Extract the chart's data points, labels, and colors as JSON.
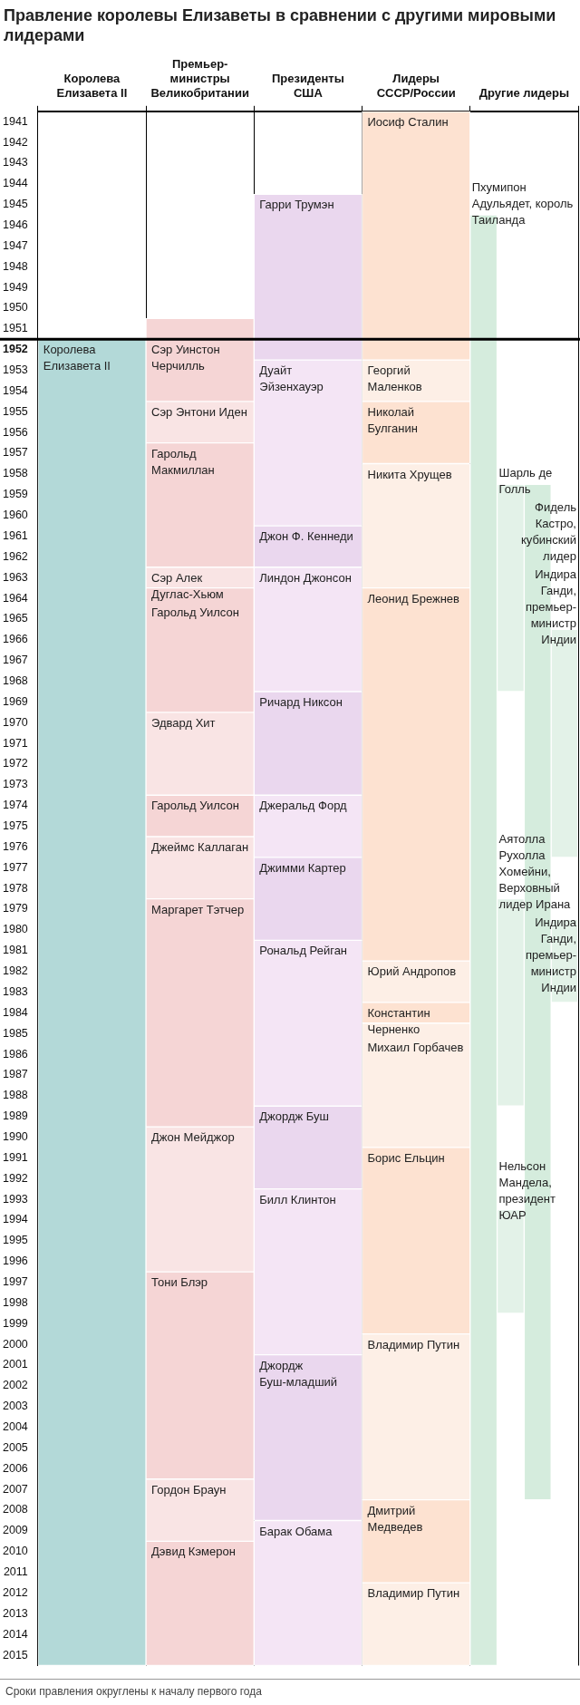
{
  "chart_data": {
    "type": "bar",
    "title": "Правление королевы Елизаветы в сравнении с другими мировыми лидерами",
    "categories": [
      "Королева Елизавета II",
      "Премьер-министры Великобритании",
      "Президенты США",
      "Лидеры СССР/России",
      "Другие лидеры"
    ],
    "ylim": [
      2016,
      1941
    ],
    "yticks": [
      {
        "value": 1941.5,
        "label": "1941"
      },
      {
        "value": 1942.5,
        "label": "1942"
      },
      {
        "value": 1943.5,
        "label": "1943"
      },
      {
        "value": 1944.5,
        "label": "1944"
      },
      {
        "value": 1945.5,
        "label": "1945"
      },
      {
        "value": 1946.5,
        "label": "1946"
      },
      {
        "value": 1947.5,
        "label": "1947"
      },
      {
        "value": 1948.5,
        "label": "1948"
      },
      {
        "value": 1949.5,
        "label": "1949"
      },
      {
        "value": 1950.5,
        "label": "1950"
      },
      {
        "value": 1951.5,
        "label": "1951"
      },
      {
        "value": 1952.5,
        "label": "1952"
      },
      {
        "value": 1953.5,
        "label": "1953"
      },
      {
        "value": 1954.5,
        "label": "1954"
      },
      {
        "value": 1955.5,
        "label": "1955"
      },
      {
        "value": 1956.5,
        "label": "1956"
      },
      {
        "value": 1957.5,
        "label": "1957"
      },
      {
        "value": 1958.5,
        "label": "1958"
      },
      {
        "value": 1959.5,
        "label": "1959"
      },
      {
        "value": 1960.5,
        "label": "1960"
      },
      {
        "value": 1961.5,
        "label": "1961"
      },
      {
        "value": 1962.5,
        "label": "1962"
      },
      {
        "value": 1963.5,
        "label": "1963"
      },
      {
        "value": 1964.5,
        "label": "1964"
      },
      {
        "value": 1965.5,
        "label": "1965"
      },
      {
        "value": 1966.5,
        "label": "1966"
      },
      {
        "value": 1967.5,
        "label": "1967"
      },
      {
        "value": 1968.5,
        "label": "1968"
      },
      {
        "value": 1969.5,
        "label": "1969"
      },
      {
        "value": 1970.5,
        "label": "1970"
      },
      {
        "value": 1971.5,
        "label": "1971"
      },
      {
        "value": 1972.5,
        "label": "1972"
      },
      {
        "value": 1973.5,
        "label": "1973"
      },
      {
        "value": 1974.5,
        "label": "1974"
      },
      {
        "value": 1975.5,
        "label": "1975"
      },
      {
        "value": 1976.5,
        "label": "1976"
      },
      {
        "value": 1977.5,
        "label": "1977"
      },
      {
        "value": 1978.5,
        "label": "1978"
      },
      {
        "value": 1979.5,
        "label": "1979"
      },
      {
        "value": 1980.5,
        "label": "1980"
      },
      {
        "value": 1981.5,
        "label": "1981"
      },
      {
        "value": 1982.5,
        "label": "1982"
      },
      {
        "value": 1983.5,
        "label": "1983"
      },
      {
        "value": 1984.5,
        "label": "1984"
      },
      {
        "value": 1985.5,
        "label": "1985"
      },
      {
        "value": 1986.5,
        "label": "1986"
      },
      {
        "value": 1987.5,
        "label": "1987"
      },
      {
        "value": 1988.5,
        "label": "1988"
      },
      {
        "value": 1989.5,
        "label": "1989"
      },
      {
        "value": 1990.5,
        "label": "1990"
      },
      {
        "value": 1991.5,
        "label": "1991"
      },
      {
        "value": 1992.5,
        "label": "1992"
      },
      {
        "value": 1993.5,
        "label": "1993"
      },
      {
        "value": 1994.5,
        "label": "1994"
      },
      {
        "value": 1995.5,
        "label": "1995"
      },
      {
        "value": 1996.5,
        "label": "1996"
      },
      {
        "value": 1997.5,
        "label": "1997"
      },
      {
        "value": 1998.5,
        "label": "1998"
      },
      {
        "value": 1999.5,
        "label": "1999"
      },
      {
        "value": 2000.5,
        "label": "2000"
      },
      {
        "value": 2001.5,
        "label": "2001"
      },
      {
        "value": 2002.5,
        "label": "2002"
      },
      {
        "value": 2003.5,
        "label": "2003"
      },
      {
        "value": 2004.5,
        "label": "2004"
      },
      {
        "value": 2005.5,
        "label": "2005"
      },
      {
        "value": 2006.5,
        "label": "2006"
      },
      {
        "value": 2007.5,
        "label": "2007"
      },
      {
        "value": 2008.5,
        "label": "2008"
      },
      {
        "value": 2009.5,
        "label": "2009"
      },
      {
        "value": 2010.5,
        "label": "2010"
      },
      {
        "value": 2011.5,
        "label": "2011"
      },
      {
        "value": 2012.5,
        "label": "2012"
      },
      {
        "value": 2013.5,
        "label": "2013"
      },
      {
        "value": 2014.5,
        "label": "2014"
      },
      {
        "value": 2015.5,
        "label": "2015"
      }
    ],
    "grid": "x",
    "ref_lines": [
      {
        "axis": "y",
        "value": 1952,
        "color": "#000000"
      }
    ],
    "annotations": [
      "Сроки правления округлены к началу первого года"
    ],
    "series": [
      {
        "name": "Королева Елизавета II",
        "color": "#b3d9d8",
        "values": [
          64,
          null,
          null,
          null,
          null
        ],
        "base": [
          1952,
          null,
          null,
          null,
          null
        ]
      },
      {
        "name": "Сэр Уинстон Черчилль",
        "color": "#f5d5d5",
        "values": [
          null,
          4,
          null,
          null,
          null
        ],
        "base": [
          null,
          1951,
          null,
          null,
          null
        ]
      },
      {
        "name": "Сэр Энтони Иден",
        "color": "#f9e4e4",
        "values": [
          null,
          2,
          null,
          null,
          null
        ],
        "base": [
          null,
          1955,
          null,
          null,
          null
        ]
      },
      {
        "name": "Гарольд Макмиллан",
        "color": "#f5d5d5",
        "values": [
          null,
          6,
          null,
          null,
          null
        ],
        "base": [
          null,
          1957,
          null,
          null,
          null
        ]
      },
      {
        "name": "Сэр Алек Дуглас-Хьюм",
        "color": "#f9e4e4",
        "values": [
          null,
          1,
          null,
          null,
          null
        ],
        "base": [
          null,
          1963,
          null,
          null,
          null
        ]
      },
      {
        "name": "Гарольд Уилсон",
        "color": "#f5d5d5",
        "values": [
          null,
          6,
          null,
          null,
          null
        ],
        "base": [
          null,
          1964,
          null,
          null,
          null
        ]
      },
      {
        "name": "Эдвард Хит",
        "color": "#f9e4e4",
        "values": [
          null,
          4,
          null,
          null,
          null
        ],
        "base": [
          null,
          1970,
          null,
          null,
          null
        ]
      },
      {
        "name": "Гарольд Уилсон",
        "color": "#f5d5d5",
        "values": [
          null,
          2,
          null,
          null,
          null
        ],
        "base": [
          null,
          1974,
          null,
          null,
          null
        ]
      },
      {
        "name": "Джеймс Каллаган",
        "color": "#f9e4e4",
        "values": [
          null,
          3,
          null,
          null,
          null
        ],
        "base": [
          null,
          1976,
          null,
          null,
          null
        ]
      },
      {
        "name": "Маргарет Тэтчер",
        "color": "#f5d5d5",
        "values": [
          null,
          11,
          null,
          null,
          null
        ],
        "base": [
          null,
          1979,
          null,
          null,
          null
        ]
      },
      {
        "name": "Джон Мейджор",
        "color": "#f9e4e4",
        "values": [
          null,
          7,
          null,
          null,
          null
        ],
        "base": [
          null,
          1990,
          null,
          null,
          null
        ]
      },
      {
        "name": "Тони Блэр",
        "color": "#f5d5d5",
        "values": [
          null,
          10,
          null,
          null,
          null
        ],
        "base": [
          null,
          1997,
          null,
          null,
          null
        ]
      },
      {
        "name": "Гордон Браун",
        "color": "#f9e4e4",
        "values": [
          null,
          3,
          null,
          null,
          null
        ],
        "base": [
          null,
          2007,
          null,
          null,
          null
        ]
      },
      {
        "name": "Дэвид Кэмерон",
        "color": "#f5d5d5",
        "values": [
          null,
          6,
          null,
          null,
          null
        ],
        "base": [
          null,
          2010,
          null,
          null,
          null
        ]
      },
      {
        "name": "Гарри Трумэн",
        "color": "#ead7ee",
        "values": [
          null,
          null,
          8,
          null,
          null
        ],
        "base": [
          null,
          null,
          1945,
          null,
          null
        ]
      },
      {
        "name": "Дуайт Эйзенхауэр",
        "color": "#f4e5f5",
        "values": [
          null,
          null,
          8,
          null,
          null
        ],
        "base": [
          null,
          null,
          1953,
          null,
          null
        ]
      },
      {
        "name": "Джон Ф. Кеннеди",
        "color": "#ead7ee",
        "values": [
          null,
          null,
          2,
          null,
          null
        ],
        "base": [
          null,
          null,
          1961,
          null,
          null
        ]
      },
      {
        "name": "Линдон Джонсон",
        "color": "#f4e5f5",
        "values": [
          null,
          null,
          6,
          null,
          null
        ],
        "base": [
          null,
          null,
          1963,
          null,
          null
        ]
      },
      {
        "name": "Ричард Никсон",
        "color": "#ead7ee",
        "values": [
          null,
          null,
          5,
          null,
          null
        ],
        "base": [
          null,
          null,
          1969,
          null,
          null
        ]
      },
      {
        "name": "Джеральд Форд",
        "color": "#f4e5f5",
        "values": [
          null,
          null,
          3,
          null,
          null
        ],
        "base": [
          null,
          null,
          1974,
          null,
          null
        ]
      },
      {
        "name": "Джимми Картер",
        "color": "#ead7ee",
        "values": [
          null,
          null,
          4,
          null,
          null
        ],
        "base": [
          null,
          null,
          1977,
          null,
          null
        ]
      },
      {
        "name": "Рональд Рейган",
        "color": "#f4e5f5",
        "values": [
          null,
          null,
          8,
          null,
          null
        ],
        "base": [
          null,
          null,
          1981,
          null,
          null
        ]
      },
      {
        "name": "Джордж Буш",
        "color": "#ead7ee",
        "values": [
          null,
          null,
          4,
          null,
          null
        ],
        "base": [
          null,
          null,
          1989,
          null,
          null
        ]
      },
      {
        "name": "Билл Клинтон",
        "color": "#f4e5f5",
        "values": [
          null,
          null,
          8,
          null,
          null
        ],
        "base": [
          null,
          null,
          1993,
          null,
          null
        ]
      },
      {
        "name": "Джордж Буш-младший",
        "color": "#ead7ee",
        "values": [
          null,
          null,
          8,
          null,
          null
        ],
        "base": [
          null,
          null,
          2001,
          null,
          null
        ]
      },
      {
        "name": "Барак Обама",
        "color": "#f4e5f5",
        "values": [
          null,
          null,
          7,
          null,
          null
        ],
        "base": [
          null,
          null,
          2009,
          null,
          null
        ]
      },
      {
        "name": "Иосиф Сталин",
        "color": "#fde2d1",
        "values": [
          null,
          null,
          null,
          12,
          null
        ],
        "base": [
          null,
          null,
          null,
          1941,
          null
        ]
      },
      {
        "name": "Георгий Маленков",
        "color": "#fdefe6",
        "values": [
          null,
          null,
          null,
          2,
          null
        ],
        "base": [
          null,
          null,
          null,
          1953,
          null
        ]
      },
      {
        "name": "Николай Булганин",
        "color": "#fde2d1",
        "values": [
          null,
          null,
          null,
          3,
          null
        ],
        "base": [
          null,
          null,
          null,
          1955,
          null
        ]
      },
      {
        "name": "Никита Хрущев",
        "color": "#fdefe6",
        "values": [
          null,
          null,
          null,
          6,
          null
        ],
        "base": [
          null,
          null,
          null,
          1958,
          null
        ]
      },
      {
        "name": "Леонид Брежнев",
        "color": "#fde2d1",
        "values": [
          null,
          null,
          null,
          18,
          null
        ],
        "base": [
          null,
          null,
          null,
          1964,
          null
        ]
      },
      {
        "name": "Юрий Андропов",
        "color": "#fdefe6",
        "values": [
          null,
          null,
          null,
          2,
          null
        ],
        "base": [
          null,
          null,
          null,
          1982,
          null
        ]
      },
      {
        "name": "Константин Черненко",
        "color": "#fde2d1",
        "values": [
          null,
          null,
          null,
          1,
          null
        ],
        "base": [
          null,
          null,
          null,
          1984,
          null
        ]
      },
      {
        "name": "Михаил Горбачев",
        "color": "#fdefe6",
        "values": [
          null,
          null,
          null,
          6,
          null
        ],
        "base": [
          null,
          null,
          null,
          1985,
          null
        ]
      },
      {
        "name": "Борис Ельцин",
        "color": "#fde2d1",
        "values": [
          null,
          null,
          null,
          9,
          null
        ],
        "base": [
          null,
          null,
          null,
          1991,
          null
        ]
      },
      {
        "name": "Владимир Путин",
        "color": "#fdefe6",
        "values": [
          null,
          null,
          null,
          8,
          null
        ],
        "base": [
          null,
          null,
          null,
          2000,
          null
        ]
      },
      {
        "name": "Дмитрий Медведев",
        "color": "#fde2d1",
        "values": [
          null,
          null,
          null,
          4,
          null
        ],
        "base": [
          null,
          null,
          null,
          2008,
          null
        ]
      },
      {
        "name": "Владимир Путин",
        "color": "#fdefe6",
        "values": [
          null,
          null,
          null,
          4,
          null
        ],
        "base": [
          null,
          null,
          null,
          2012,
          null
        ]
      },
      {
        "name": "Пхумипон Адульядет, король Таиланда",
        "color": "#d5ecdd",
        "values": [
          null,
          null,
          null,
          null,
          70
        ],
        "base": [
          null,
          null,
          null,
          null,
          1946
        ]
      },
      {
        "name": "Шарль де Голль",
        "color": "#e3f2e8",
        "values": [
          null,
          null,
          null,
          null,
          10
        ],
        "base": [
          null,
          null,
          null,
          null,
          1959
        ]
      },
      {
        "name": "Фидель Кастро, кубинский лидер",
        "color": "#d5ecdd",
        "values": [
          null,
          null,
          null,
          null,
          49
        ],
        "base": [
          null,
          null,
          null,
          null,
          1959
        ]
      },
      {
        "name": "Индира Ганди, премьер-министр Индии",
        "color": "#e3f2e8",
        "values": [
          null,
          null,
          null,
          null,
          11
        ],
        "base": [
          null,
          null,
          null,
          null,
          1966
        ]
      },
      {
        "name": "Аятолла Рухолла Хомейни, Верховный лидер Ирана",
        "color": "#e3f2e8",
        "values": [
          null,
          null,
          null,
          null,
          10
        ],
        "base": [
          null,
          null,
          null,
          null,
          1979
        ]
      },
      {
        "name": "Индира Ганди, премьер-министр Индии",
        "color": "#e3f2e8",
        "values": [
          null,
          null,
          null,
          null,
          4
        ],
        "base": [
          null,
          null,
          null,
          null,
          1980
        ]
      },
      {
        "name": "Нельсон Мандела, президент ЮАР",
        "color": "#e3f2e8",
        "values": [
          null,
          null,
          null,
          null,
          5
        ],
        "base": [
          null,
          null,
          null,
          null,
          1994
        ]
      }
    ]
  }
}
